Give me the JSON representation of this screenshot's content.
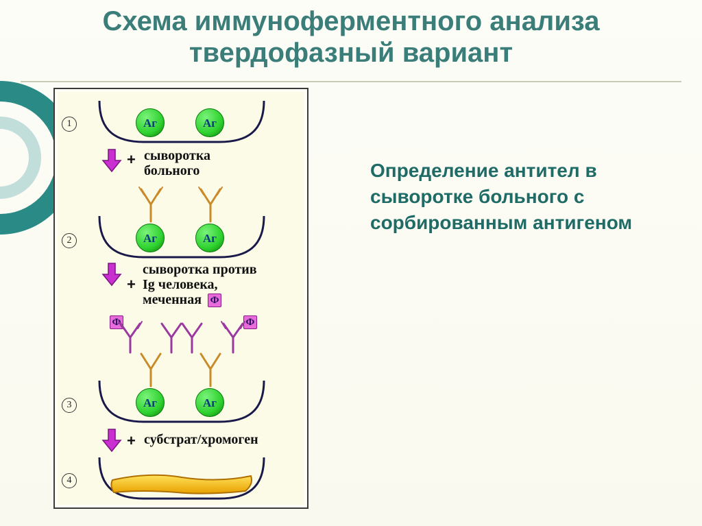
{
  "title": {
    "line1": "Схема иммуноферментного анализа",
    "line2": "твердофазный вариант",
    "color": "#3b7d78",
    "fontsize": 40
  },
  "description": {
    "text": "Определение антител в сыворотке больного с сорбированным антигеном",
    "color": "#1f6b66",
    "fontsize": 28
  },
  "diagram": {
    "bg": "#fbfbe8",
    "border": "#3a3a3a",
    "well_stroke": "#1a1a4a",
    "well_stroke_width": 3,
    "ag": {
      "label": "Аг",
      "fill": "#2fd22f",
      "edge": "#0a7a0a",
      "text_color": "#083a7a",
      "diameter": 42,
      "fontsize": 17
    },
    "arrow": {
      "fill": "#c92fd1",
      "edge": "#7a1480"
    },
    "antibody_primary": {
      "stroke": "#c98a2a",
      "width": 3
    },
    "antibody_secondary": {
      "stroke": "#9a3aa0",
      "width": 3
    },
    "phi": {
      "label": "Ф",
      "fill": "#e86bdc",
      "edge": "#8a1a85",
      "text_color": "#2a1060",
      "fontsize": 15
    },
    "steps": [
      {
        "num": "1",
        "label_lines": [
          "сыворотка",
          "больного"
        ]
      },
      {
        "num": "2",
        "label_lines": [
          "сыворотка против",
          "Ig человека,",
          "меченная"
        ]
      },
      {
        "num": "3",
        "label_lines": [
          "субстрат/хромоген"
        ]
      },
      {
        "num": "4",
        "label_lines": []
      }
    ],
    "label_color": "#111",
    "label_fontsize": 20,
    "result": {
      "fill_top": "#ffd23a",
      "fill_bottom": "#e8a000",
      "edge": "#b07000"
    }
  }
}
